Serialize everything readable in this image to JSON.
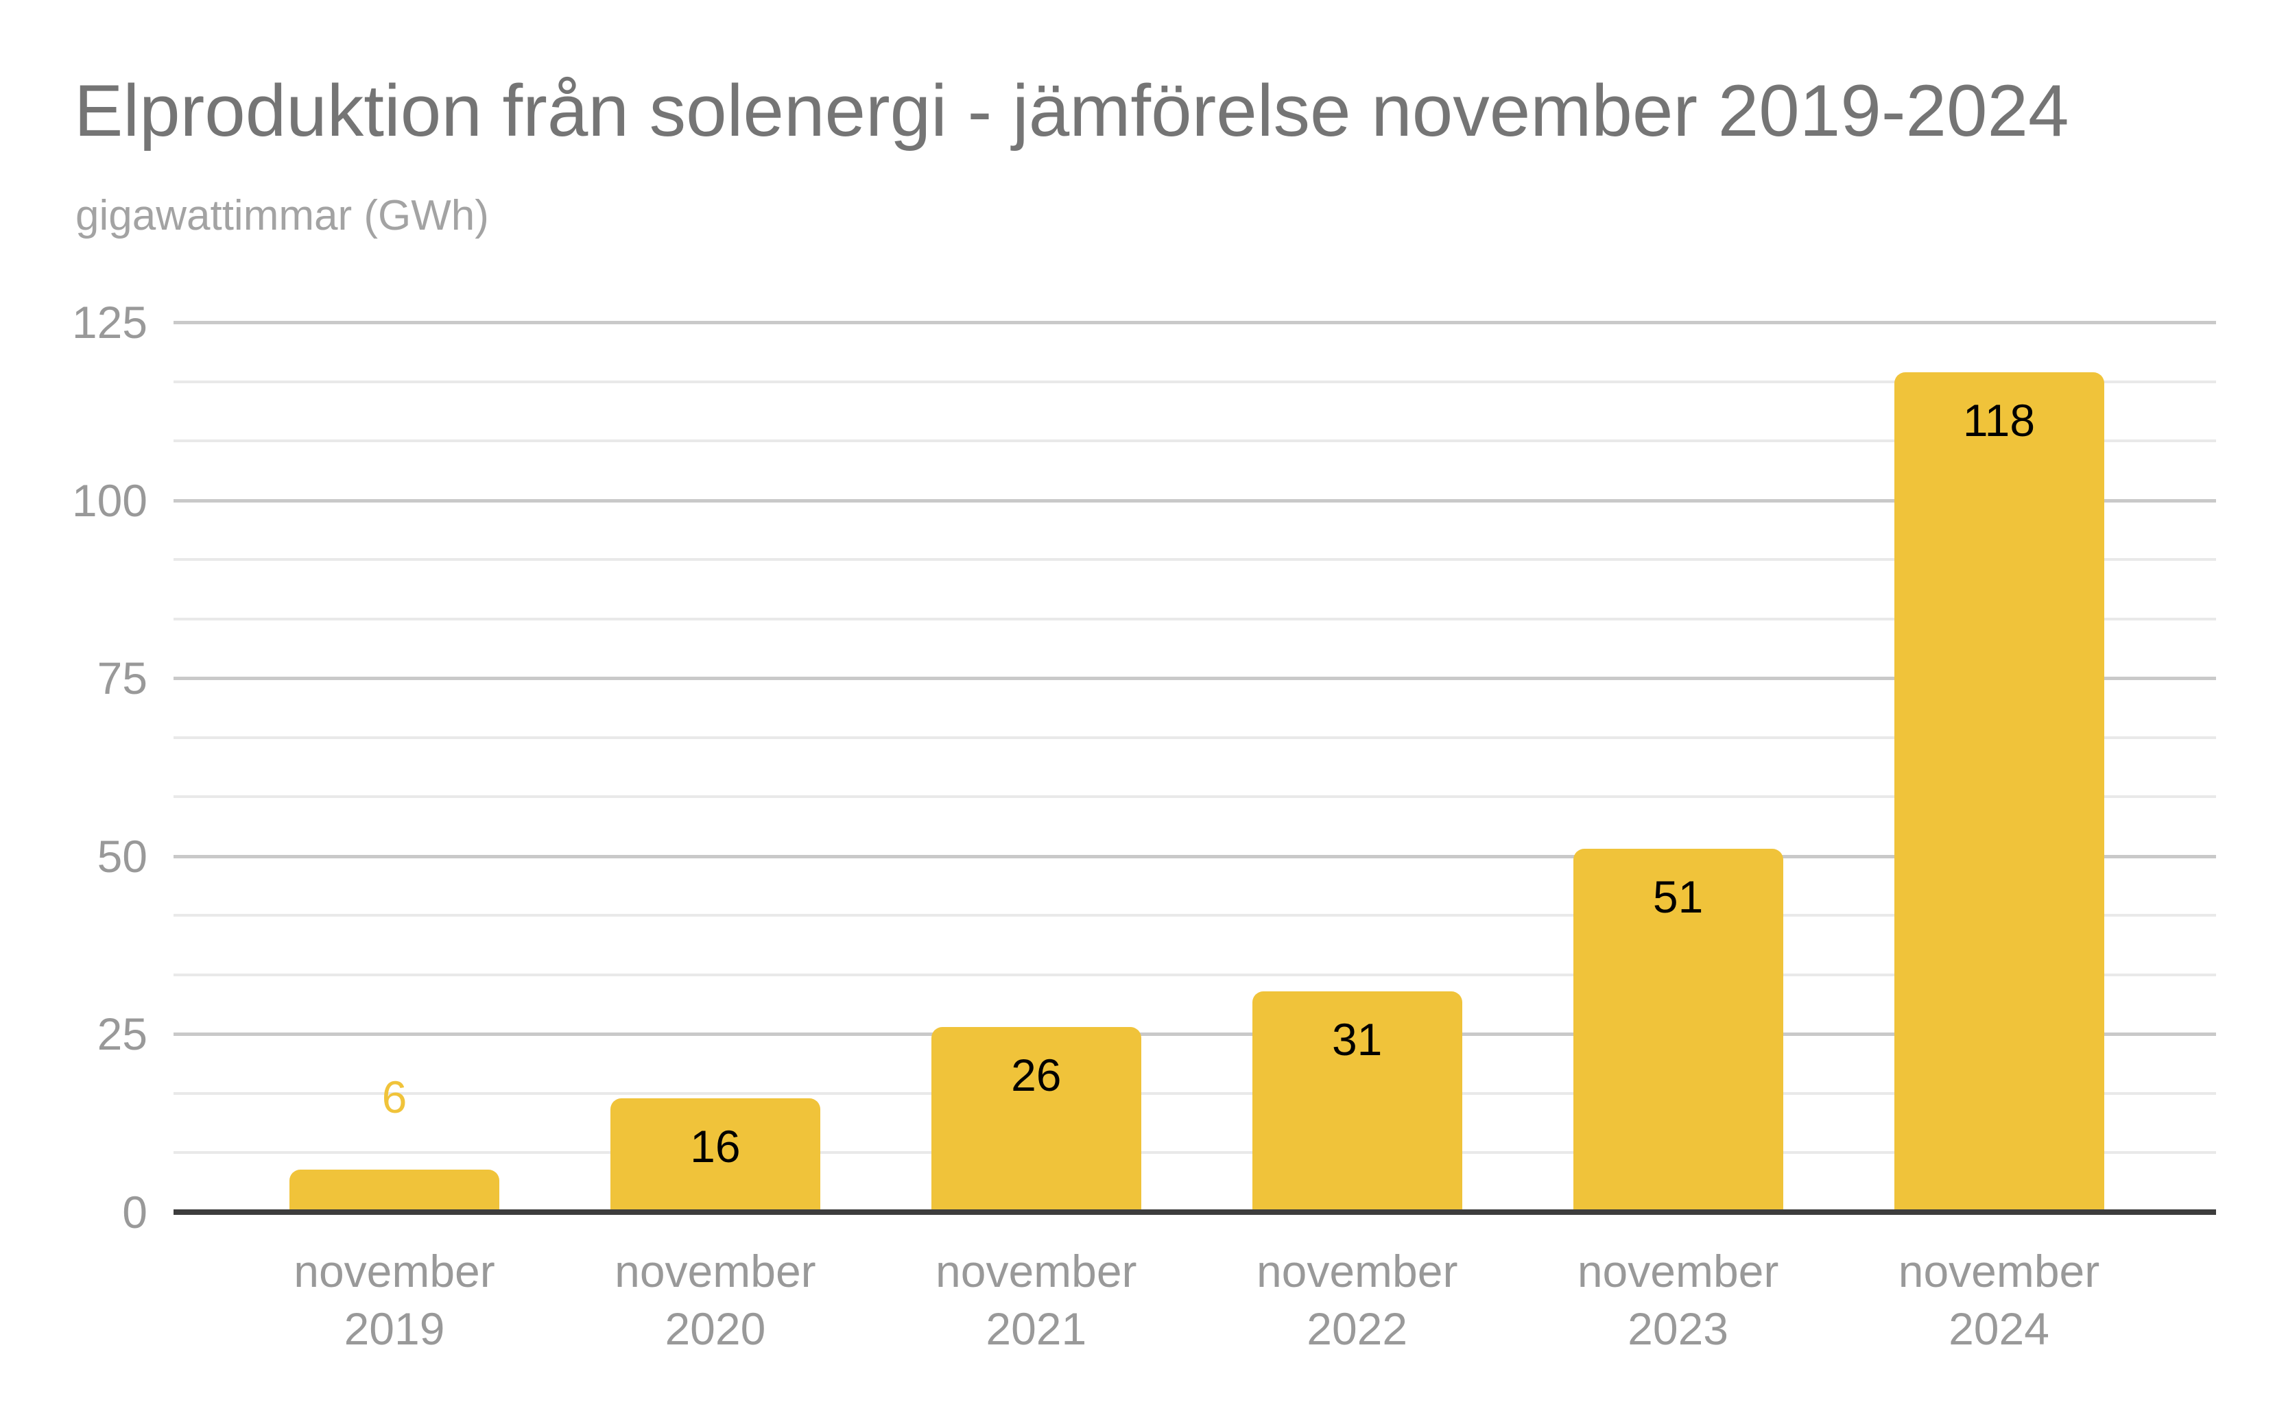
{
  "page": {
    "background": "#ffffff"
  },
  "chart_data": {
    "type": "bar",
    "title": "Elproduktion från solenergi - jämförelse november 2019-2024",
    "subtitle": "gigawattimmar (GWh)",
    "ylabel": "gigawattimmar (GWh)",
    "xlabel": "",
    "categories": [
      [
        "november",
        "2019"
      ],
      [
        "november",
        "2020"
      ],
      [
        "november",
        "2021"
      ],
      [
        "november",
        "2022"
      ],
      [
        "november",
        "2023"
      ],
      [
        "november",
        "2024"
      ]
    ],
    "values": [
      6,
      16,
      26,
      31,
      51,
      118
    ],
    "value_labels": [
      "6",
      "16",
      "26",
      "31",
      "51",
      "118"
    ],
    "ylim": [
      0,
      125
    ],
    "yticks": [
      0,
      25,
      50,
      75,
      100,
      125
    ],
    "minor_gridlines_per_interval": 2,
    "grid": "horizontal",
    "legend_position": "none",
    "colors": {
      "bar": "#f0c33a",
      "value_label_inside": "#000000",
      "value_label_outside": "#f0c33a",
      "title": "#757575",
      "subtitle": "#a3a3a3",
      "axis_labels": "#999999",
      "gridline_major": "#c9c9c9",
      "gridline_minor": "#e9e9e9",
      "axis_line": "#3d3d3d"
    }
  }
}
